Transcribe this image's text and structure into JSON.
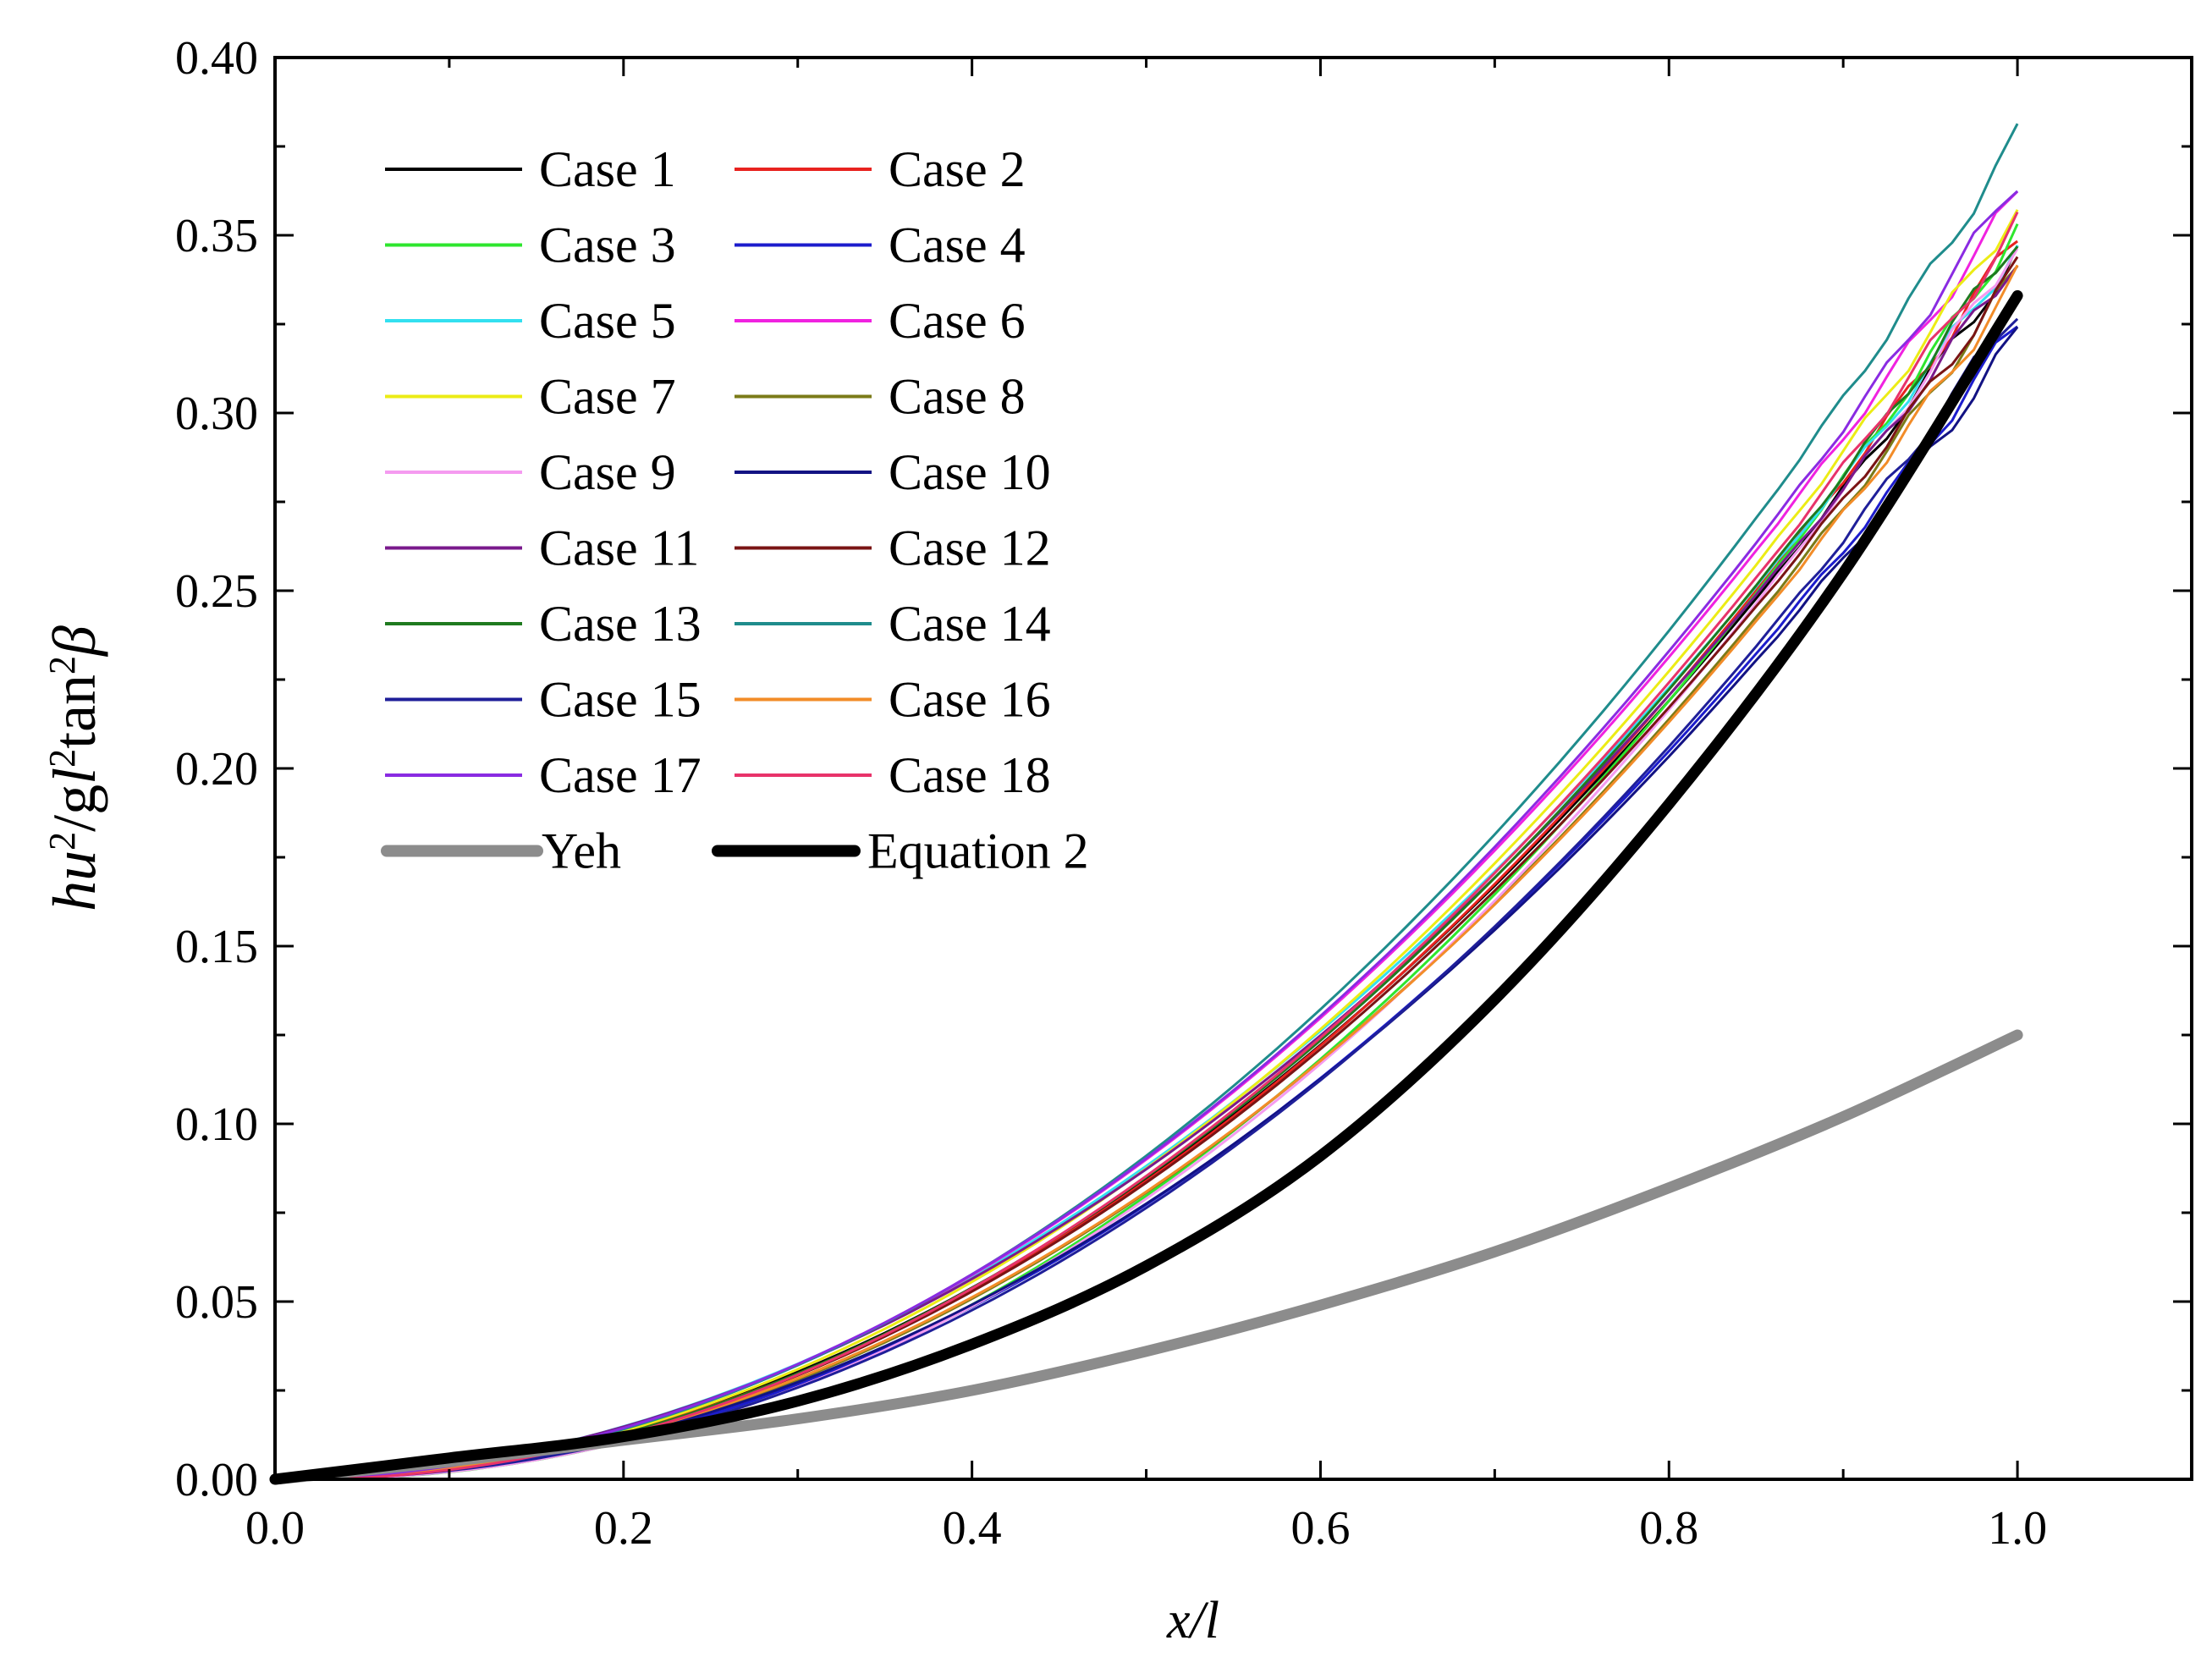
{
  "chart_data": {
    "type": "line",
    "xlabel": "x/l",
    "ylabel": {
      "parts": [
        {
          "t": "hu",
          "s": "italic"
        },
        {
          "t": "2",
          "s": "sup"
        },
        {
          "t": "/g",
          "s": "normal"
        },
        {
          "t": "l",
          "s": "italic"
        },
        {
          "t": "2",
          "s": "sup"
        },
        {
          "t": "tan",
          "s": "normal"
        },
        {
          "t": "2",
          "s": "sup"
        },
        {
          "t": "β",
          "s": "italic"
        }
      ]
    },
    "xlim": [
      0,
      1.1
    ],
    "ylim": [
      0,
      0.4
    ],
    "xticks": [
      0.0,
      0.2,
      0.4,
      0.6,
      0.8,
      1.0
    ],
    "xtick_labels": [
      "0.0",
      "0.2",
      "0.4",
      "0.6",
      "0.8",
      "1.0"
    ],
    "yticks": [
      0.0,
      0.05,
      0.1,
      0.15,
      0.2,
      0.25,
      0.3,
      0.35,
      0.4
    ],
    "ytick_labels": [
      "0.00",
      "0.05",
      "0.10",
      "0.15",
      "0.20",
      "0.25",
      "0.30",
      "0.35",
      "0.40"
    ],
    "grid": false,
    "legend_position": "top-left",
    "series": [
      {
        "name": "Case 1",
        "color": "#000000",
        "end": 0.345
      },
      {
        "name": "Case 2",
        "color": "#e8221f",
        "end": 0.35
      },
      {
        "name": "Case 3",
        "color": "#2ee62e",
        "end": 0.352
      },
      {
        "name": "Case 4",
        "color": "#1c1ccc",
        "end": 0.325
      },
      {
        "name": "Case 5",
        "color": "#33e0f0",
        "end": 0.347
      },
      {
        "name": "Case 6",
        "color": "#f022e0",
        "end": 0.362
      },
      {
        "name": "Case 7",
        "color": "#ecec15",
        "end": 0.358
      },
      {
        "name": "Case 8",
        "color": "#7b7b18",
        "end": 0.34
      },
      {
        "name": "Case 9",
        "color": "#f59bf0",
        "end": 0.348
      },
      {
        "name": "Case 10",
        "color": "#121283",
        "end": 0.322
      },
      {
        "name": "Case 11",
        "color": "#7a1a8c",
        "end": 0.344
      },
      {
        "name": "Case 12",
        "color": "#7a1414",
        "end": 0.341
      },
      {
        "name": "Case 13",
        "color": "#1f7a1f",
        "end": 0.35
      },
      {
        "name": "Case 14",
        "color": "#1f8c8c",
        "end": 0.378
      },
      {
        "name": "Case 15",
        "color": "#1f1f99",
        "end": 0.33
      },
      {
        "name": "Case 16",
        "color": "#f28c28",
        "end": 0.338
      },
      {
        "name": "Case 17",
        "color": "#8a2be2",
        "end": 0.366
      },
      {
        "name": "Case 18",
        "color": "#e8336a",
        "end": 0.353
      },
      {
        "name": "Yeh",
        "color": "#8c8c8c",
        "thick": true,
        "x": [
          0.0,
          0.1,
          0.2,
          0.3,
          0.4,
          0.5,
          0.6,
          0.7,
          0.8,
          0.9,
          1.0
        ],
        "y": [
          0.0,
          0.005,
          0.011,
          0.017,
          0.025,
          0.036,
          0.049,
          0.064,
          0.082,
          0.102,
          0.125
        ]
      },
      {
        "name": "Equation 2",
        "color": "#000000",
        "thick": true,
        "x": [
          0.0,
          0.1,
          0.2,
          0.3,
          0.4,
          0.5,
          0.6,
          0.7,
          0.8,
          0.9,
          1.0
        ],
        "y": [
          0.0,
          0.006,
          0.012,
          0.022,
          0.038,
          0.06,
          0.091,
          0.135,
          0.19,
          0.255,
          0.333
        ]
      }
    ]
  }
}
